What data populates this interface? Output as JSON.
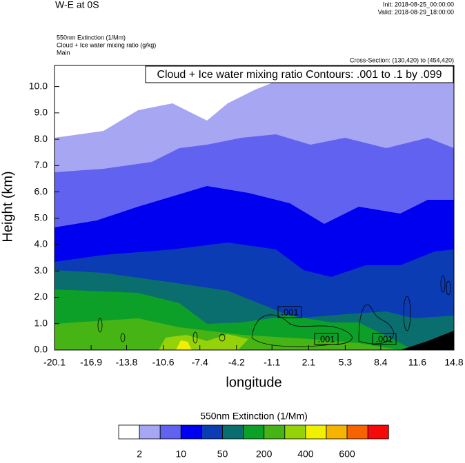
{
  "chart_data": {
    "type": "contour",
    "title": "W-E at 0S",
    "init": "Init: 2018-08-25_00:00:00",
    "valid": "Valid: 2018-08-29_18:00:00",
    "field_labels": [
      "550nm Extinction   (1/Mm)",
      "Cloud + Ice water mixing ratio   (g/kg)",
      "Main"
    ],
    "cross_section": "Cross-Section: (130,420) to (454,420)",
    "contour_info": "Cloud + Ice water mixing ratio Contours: .001 to .1 by .099",
    "contour_labels": [
      ".001",
      ".001",
      ".001"
    ],
    "x_label": "longitude",
    "y_label": "Height (km)",
    "xlim": [
      -20.1,
      14.8
    ],
    "xticks": [
      -20.1,
      -16.9,
      -13.8,
      -10.6,
      -7.4,
      -4.2,
      -1.1,
      2.1,
      5.3,
      8.4,
      11.6,
      14.8
    ],
    "ylim": [
      0,
      10.8
    ],
    "yticks": [
      {
        "value": 0,
        "label": "0.0"
      },
      {
        "value": 1,
        "label": "1.0"
      },
      {
        "value": 2,
        "label": "2.0"
      },
      {
        "value": 3,
        "label": "3.0"
      },
      {
        "value": 4,
        "label": "4.0"
      },
      {
        "value": 5,
        "label": "5.0"
      },
      {
        "value": 6,
        "label": "6.0"
      },
      {
        "value": 7,
        "label": "7.0"
      },
      {
        "value": 8,
        "label": "8.0"
      },
      {
        "value": 9,
        "label": "9.0"
      },
      {
        "value": 10,
        "label": "10.0"
      }
    ],
    "colorbar": {
      "title": "550nm Extinction  (1/Mm)",
      "colors": [
        "#ffffff",
        "#a6a6f2",
        "#6262f0",
        "#0000f0",
        "#0c3cb4",
        "#0a6e6e",
        "#0ca028",
        "#46b414",
        "#96d20a",
        "#f0f000",
        "#f5b400",
        "#f56400",
        "#f50a0a"
      ],
      "labels": [
        2,
        10,
        50,
        200,
        400,
        600
      ]
    }
  }
}
